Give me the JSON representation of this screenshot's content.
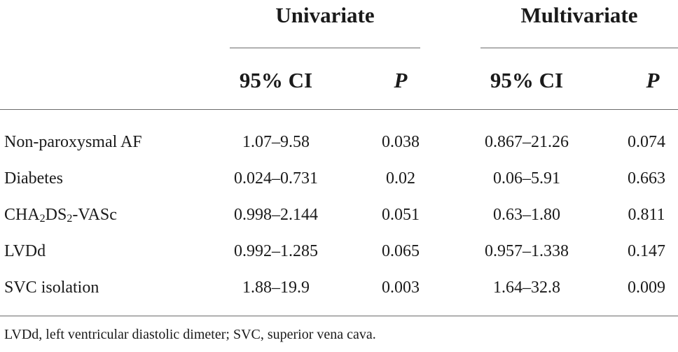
{
  "table": {
    "groups": {
      "univariate": "Univariate",
      "multivariate": "Multivariate"
    },
    "columns": {
      "uni_ci": "95% CI",
      "uni_p": "P",
      "multi_ci": "95% CI",
      "multi_p": "P"
    },
    "rows": [
      {
        "label": "Non-paroxysmal AF",
        "uni_ci": "1.07–9.58",
        "uni_p": "0.038",
        "multi_ci": "0.867–21.26",
        "multi_p": "0.074"
      },
      {
        "label": "Diabetes",
        "uni_ci": "0.024–0.731",
        "uni_p": "0.02",
        "multi_ci": "0.06–5.91",
        "multi_p": "0.663"
      },
      {
        "label_parts": [
          "CHA",
          "2",
          "DS",
          "2",
          "-VASc"
        ],
        "uni_ci": "0.998–2.144",
        "uni_p": "0.051",
        "multi_ci": "0.63–1.80",
        "multi_p": "0.811"
      },
      {
        "label": "LVDd",
        "uni_ci": "0.992–1.285",
        "uni_p": "0.065",
        "multi_ci": "0.957–1.338",
        "multi_p": "0.147"
      },
      {
        "label": "SVC isolation",
        "uni_ci": "1.88–19.9",
        "uni_p": "0.003",
        "multi_ci": "1.64–32.8",
        "multi_p": "0.009"
      }
    ],
    "footnote": "LVDd, left ventricular diastolic dimeter; SVC, superior vena cava."
  }
}
